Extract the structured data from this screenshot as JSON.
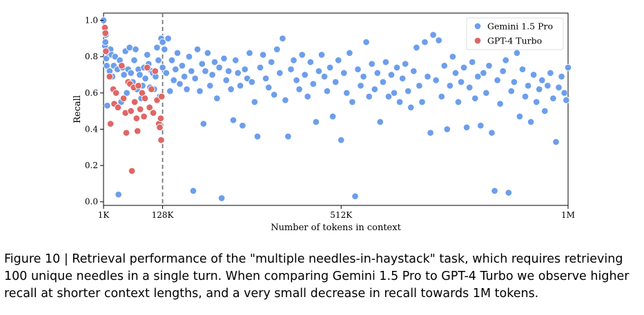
{
  "caption": "Figure 10 | Retrieval performance of the \"multiple needles-in-haystack\" task, which requires retrieving 100 unique needles in a single turn. When comparing Gemini 1.5 Pro to GPT-4 Turbo we observe higher recall at shorter context lengths, and a very small decrease in recall towards 1M tokens.",
  "chart_data": {
    "type": "scatter",
    "xlabel": "Number of tokens in context",
    "ylabel": "Recall",
    "x_ticks": [
      {
        "value": 1000,
        "label": "1K"
      },
      {
        "value": 128000,
        "label": "128K"
      },
      {
        "value": 512000,
        "label": "512K"
      },
      {
        "value": 1000000,
        "label": "1M"
      }
    ],
    "y_ticks": [
      {
        "value": 0.0,
        "label": "0.0"
      },
      {
        "value": 0.2,
        "label": "0.2"
      },
      {
        "value": 0.4,
        "label": "0.4"
      },
      {
        "value": 0.6,
        "label": "0.6"
      },
      {
        "value": 0.8,
        "label": "0.8"
      },
      {
        "value": 1.0,
        "label": "1.0"
      }
    ],
    "xlim": [
      1000,
      1000000
    ],
    "ylim": [
      -0.02,
      1.04
    ],
    "grid": false,
    "legend_position": "top-right",
    "reference_line": {
      "x": 128000,
      "style": "dashed"
    },
    "series": [
      {
        "name": "Gemini 1.5 Pro",
        "color": "#6d9eeb",
        "points": [
          [
            1000,
            1.0
          ],
          [
            4000,
            0.86
          ],
          [
            5000,
            0.88
          ],
          [
            6000,
            0.92
          ],
          [
            7000,
            0.79
          ],
          [
            8000,
            0.75
          ],
          [
            9000,
            0.53
          ],
          [
            12000,
            0.82
          ],
          [
            14000,
            0.72
          ],
          [
            16000,
            0.84
          ],
          [
            18000,
            0.81
          ],
          [
            20000,
            0.69
          ],
          [
            23000,
            0.75
          ],
          [
            26000,
            0.8
          ],
          [
            28000,
            0.6
          ],
          [
            31000,
            0.73
          ],
          [
            33000,
            0.04
          ],
          [
            36000,
            0.78
          ],
          [
            39000,
            0.55
          ],
          [
            42000,
            0.74
          ],
          [
            45000,
            0.7
          ],
          [
            48000,
            0.83
          ],
          [
            51000,
            0.6
          ],
          [
            54000,
            0.73
          ],
          [
            57000,
            0.85
          ],
          [
            60000,
            0.71
          ],
          [
            64000,
            0.66
          ],
          [
            67000,
            0.78
          ],
          [
            70000,
            0.84
          ],
          [
            73000,
            0.62
          ],
          [
            76000,
            0.73
          ],
          [
            79000,
            0.7
          ],
          [
            82000,
            0.57
          ],
          [
            85000,
            0.64
          ],
          [
            88000,
            0.74
          ],
          [
            91000,
            0.68
          ],
          [
            95000,
            0.81
          ],
          [
            98000,
            0.76
          ],
          [
            101000,
            0.63
          ],
          [
            104000,
            0.72
          ],
          [
            107000,
            0.71
          ],
          [
            110000,
            0.62
          ],
          [
            113000,
            0.69
          ],
          [
            116000,
            0.85
          ],
          [
            119000,
            0.78
          ],
          [
            122000,
            0.58
          ],
          [
            125000,
            0.9
          ],
          [
            128000,
            0.74
          ],
          [
            128000,
            0.88
          ],
          [
            132000,
            0.84
          ],
          [
            136000,
            0.71
          ],
          [
            140000,
            0.9
          ],
          [
            144000,
            0.61
          ],
          [
            148000,
            0.78
          ],
          [
            152000,
            0.67
          ],
          [
            156000,
            0.73
          ],
          [
            160000,
            0.82
          ],
          [
            165000,
            0.65
          ],
          [
            170000,
            0.75
          ],
          [
            175000,
            0.69
          ],
          [
            180000,
            0.62
          ],
          [
            185000,
            0.8
          ],
          [
            190000,
            0.72
          ],
          [
            194000,
            0.06
          ],
          [
            198000,
            0.68
          ],
          [
            203000,
            0.84
          ],
          [
            208000,
            0.61
          ],
          [
            213000,
            0.76
          ],
          [
            216000,
            0.43
          ],
          [
            220000,
            0.72
          ],
          [
            225000,
            0.82
          ],
          [
            230000,
            0.64
          ],
          [
            235000,
            0.7
          ],
          [
            240000,
            0.77
          ],
          [
            245000,
            0.57
          ],
          [
            250000,
            0.74
          ],
          [
            255000,
            0.02
          ],
          [
            260000,
            0.79
          ],
          [
            265000,
            0.67
          ],
          [
            270000,
            0.72
          ],
          [
            275000,
            0.62
          ],
          [
            280000,
            0.45
          ],
          [
            285000,
            0.78
          ],
          [
            290000,
            0.71
          ],
          [
            295000,
            0.64
          ],
          [
            300000,
            0.42
          ],
          [
            305000,
            0.73
          ],
          [
            310000,
            0.68
          ],
          [
            315000,
            0.82
          ],
          [
            320000,
            0.66
          ],
          [
            326000,
            0.55
          ],
          [
            332000,
            0.36
          ],
          [
            338000,
            0.74
          ],
          [
            344000,
            0.81
          ],
          [
            350000,
            0.68
          ],
          [
            356000,
            0.63
          ],
          [
            362000,
            0.77
          ],
          [
            368000,
            0.59
          ],
          [
            374000,
            0.84
          ],
          [
            380000,
            0.71
          ],
          [
            386000,
            0.9
          ],
          [
            392000,
            0.56
          ],
          [
            398000,
            0.36
          ],
          [
            404000,
            0.73
          ],
          [
            410000,
            0.78
          ],
          [
            416000,
            0.67
          ],
          [
            422000,
            0.62
          ],
          [
            428000,
            0.81
          ],
          [
            434000,
            0.7
          ],
          [
            440000,
            0.58
          ],
          [
            446000,
            0.77
          ],
          [
            452000,
            0.65
          ],
          [
            458000,
            0.44
          ],
          [
            464000,
            0.72
          ],
          [
            470000,
            0.81
          ],
          [
            476000,
            0.69
          ],
          [
            482000,
            0.61
          ],
          [
            488000,
            0.74
          ],
          [
            494000,
            0.47
          ],
          [
            500000,
            0.66
          ],
          [
            506000,
            0.78
          ],
          [
            512000,
            0.34
          ],
          [
            518000,
            0.71
          ],
          [
            524000,
            0.6
          ],
          [
            530000,
            0.82
          ],
          [
            536000,
            0.55
          ],
          [
            542000,
            0.03
          ],
          [
            548000,
            0.73
          ],
          [
            554000,
            0.64
          ],
          [
            560000,
            0.69
          ],
          [
            566000,
            0.88
          ],
          [
            572000,
            0.58
          ],
          [
            578000,
            0.76
          ],
          [
            584000,
            0.62
          ],
          [
            590000,
            0.71
          ],
          [
            596000,
            0.44
          ],
          [
            602000,
            0.66
          ],
          [
            608000,
            0.77
          ],
          [
            614000,
            0.58
          ],
          [
            620000,
            0.7
          ],
          [
            626000,
            0.6
          ],
          [
            632000,
            0.74
          ],
          [
            638000,
            0.55
          ],
          [
            644000,
            0.68
          ],
          [
            650000,
            0.76
          ],
          [
            656000,
            0.61
          ],
          [
            662000,
            0.52
          ],
          [
            668000,
            0.72
          ],
          [
            674000,
            0.85
          ],
          [
            680000,
            0.64
          ],
          [
            686000,
            0.55
          ],
          [
            692000,
            0.88
          ],
          [
            698000,
            0.69
          ],
          [
            704000,
            0.38
          ],
          [
            710000,
            0.92
          ],
          [
            716000,
            0.67
          ],
          [
            722000,
            0.89
          ],
          [
            728000,
            0.58
          ],
          [
            734000,
            0.75
          ],
          [
            740000,
            0.4
          ],
          [
            746000,
            0.64
          ],
          [
            752000,
            0.8
          ],
          [
            758000,
            0.71
          ],
          [
            764000,
            0.55
          ],
          [
            770000,
            0.66
          ],
          [
            776000,
            0.74
          ],
          [
            782000,
            0.41
          ],
          [
            788000,
            0.63
          ],
          [
            794000,
            0.77
          ],
          [
            800000,
            0.57
          ],
          [
            806000,
            0.69
          ],
          [
            812000,
            0.42
          ],
          [
            818000,
            0.71
          ],
          [
            824000,
            0.6
          ],
          [
            830000,
            0.75
          ],
          [
            836000,
            0.38
          ],
          [
            842000,
            0.06
          ],
          [
            848000,
            0.67
          ],
          [
            854000,
            0.54
          ],
          [
            860000,
            0.72
          ],
          [
            866000,
            0.78
          ],
          [
            872000,
            0.05
          ],
          [
            878000,
            0.61
          ],
          [
            884000,
            0.66
          ],
          [
            890000,
            0.82
          ],
          [
            896000,
            0.47
          ],
          [
            902000,
            0.73
          ],
          [
            908000,
            0.58
          ],
          [
            914000,
            0.64
          ],
          [
            920000,
            0.44
          ],
          [
            926000,
            0.7
          ],
          [
            932000,
            0.55
          ],
          [
            938000,
            0.62
          ],
          [
            944000,
            0.67
          ],
          [
            950000,
            0.5
          ],
          [
            956000,
            0.64
          ],
          [
            962000,
            0.71
          ],
          [
            968000,
            0.57
          ],
          [
            974000,
            0.33
          ],
          [
            980000,
            0.63
          ],
          [
            986000,
            0.69
          ],
          [
            992000,
            0.6
          ],
          [
            996000,
            0.56
          ],
          [
            1000000,
            0.74
          ]
        ]
      },
      {
        "name": "GPT-4 Turbo",
        "color": "#e06666",
        "points": [
          [
            4000,
            0.96
          ],
          [
            5000,
            0.93
          ],
          [
            6000,
            0.83
          ],
          [
            14000,
            0.69
          ],
          [
            16000,
            0.43
          ],
          [
            22000,
            0.62
          ],
          [
            24000,
            0.54
          ],
          [
            28000,
            0.6
          ],
          [
            32000,
            0.52
          ],
          [
            40000,
            0.75
          ],
          [
            44000,
            0.57
          ],
          [
            48000,
            0.49
          ],
          [
            50000,
            0.38
          ],
          [
            54000,
            0.66
          ],
          [
            58000,
            0.65
          ],
          [
            60000,
            0.5
          ],
          [
            62000,
            0.17
          ],
          [
            66000,
            0.63
          ],
          [
            68000,
            0.55
          ],
          [
            72000,
            0.46
          ],
          [
            74000,
            0.39
          ],
          [
            76000,
            0.64
          ],
          [
            80000,
            0.51
          ],
          [
            84000,
            0.6
          ],
          [
            88000,
            0.47
          ],
          [
            90000,
            0.57
          ],
          [
            95000,
            0.74
          ],
          [
            100000,
            0.52
          ],
          [
            104000,
            0.62
          ],
          [
            108000,
            0.49
          ],
          [
            112000,
            0.72
          ],
          [
            116000,
            0.56
          ],
          [
            120000,
            0.43
          ],
          [
            122000,
            0.41
          ],
          [
            124000,
            0.46
          ],
          [
            125000,
            0.34
          ],
          [
            126000,
            0.58
          ]
        ]
      }
    ]
  }
}
